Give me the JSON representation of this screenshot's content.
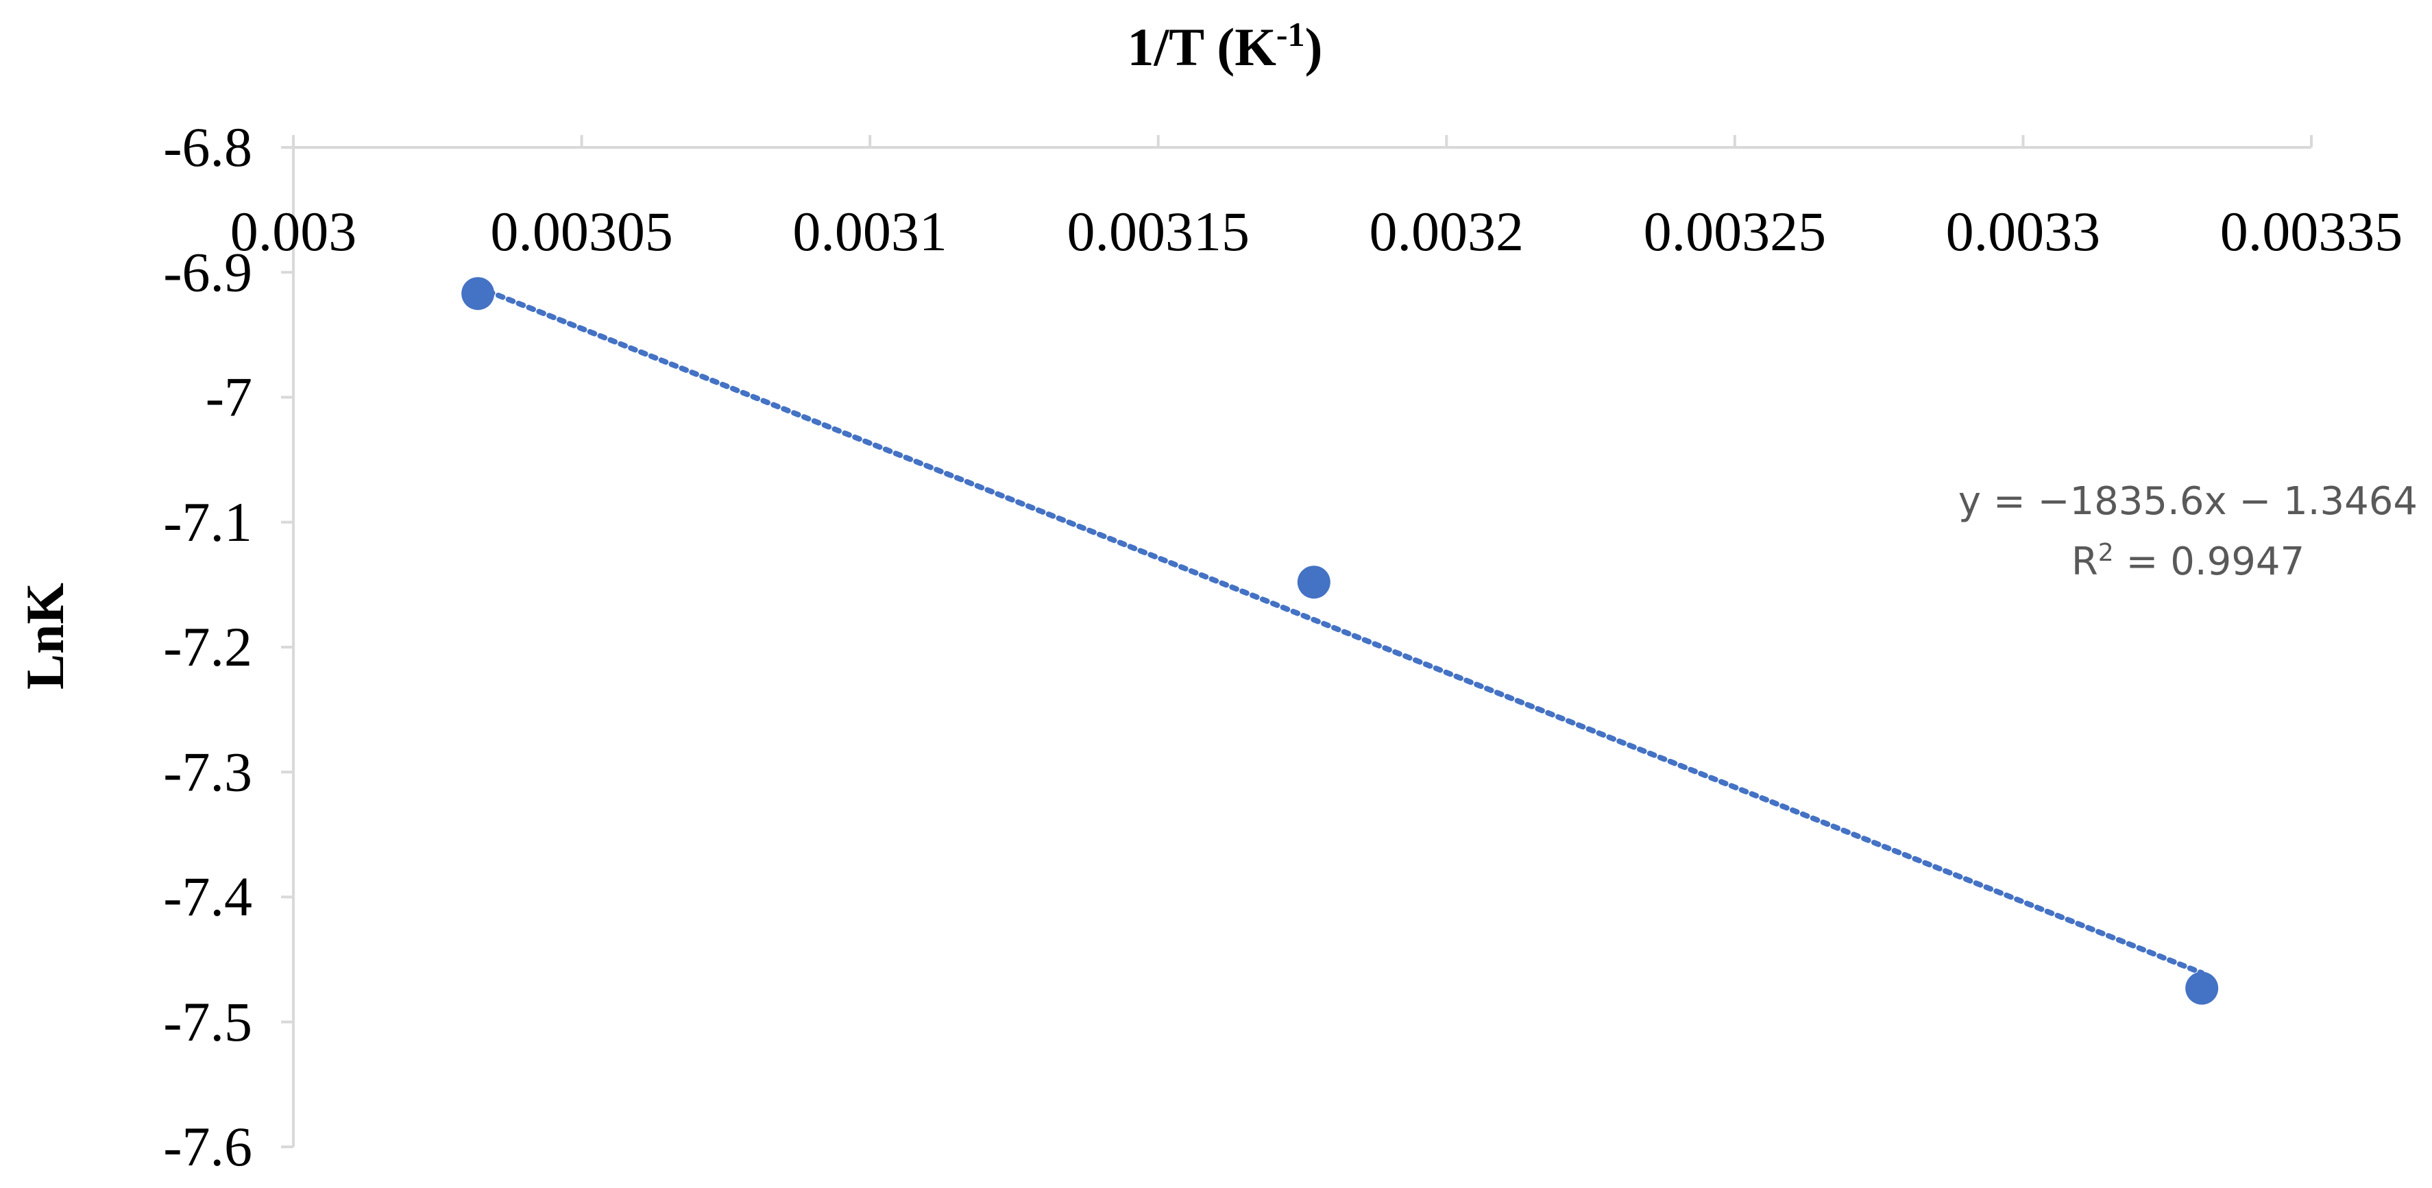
{
  "chart_data": {
    "type": "scatter",
    "title": "",
    "xlabel": "1/T (K-1)",
    "xlabel_parts": {
      "base": "1/T (K",
      "sup": "-1",
      "close": ")"
    },
    "ylabel": "LnK",
    "xlim": [
      0.003,
      0.00335
    ],
    "ylim": [
      -7.6,
      -6.8
    ],
    "xticks": [
      "0.003",
      "0.00305",
      "0.0031",
      "0.00315",
      "0.0032",
      "0.00325",
      "0.0033",
      "0.00335"
    ],
    "yticks": [
      "-6.8",
      "-6.9",
      "-7",
      "-7.1",
      "-7.2",
      "-7.3",
      "-7.4",
      "-7.5",
      "-7.6"
    ],
    "x_axis_position": "top",
    "grid": false,
    "series": [
      {
        "points": [
          {
            "x": 0.003032,
            "y": -6.917
          },
          {
            "x": 0.003177,
            "y": -7.148
          },
          {
            "x": 0.003331,
            "y": -7.473
          }
        ],
        "color": "#4472C4",
        "marker": "circle"
      }
    ],
    "trendline": {
      "style": "dotted",
      "color": "#4472C4",
      "slope": -1835.6,
      "intercept": -1.3464,
      "x_range": [
        0.003032,
        0.003331
      ],
      "equation_text": "y = −1835.6x − 1.3464",
      "r2_label": {
        "base": "R",
        "sup": "2",
        "rest": " = 0.9947"
      }
    },
    "axis_color": "#d9d9d9"
  }
}
